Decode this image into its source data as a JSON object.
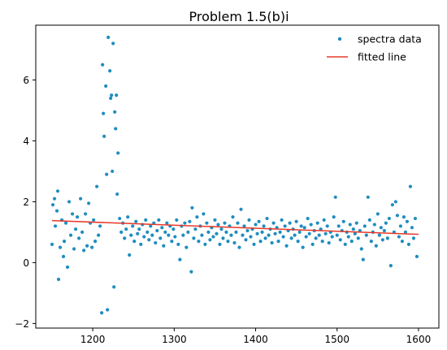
{
  "chart_data": {
    "type": "scatter",
    "title": "Problem 1.5(b)i",
    "xlabel": "",
    "ylabel": "",
    "xlim": [
      1130,
      1625
    ],
    "ylim": [
      -2.15,
      7.8
    ],
    "x_ticks": [
      1200,
      1300,
      1400,
      1500,
      1600
    ],
    "y_ticks": [
      -2,
      0,
      2,
      4,
      6
    ],
    "grid": false,
    "legend_position": "top-right",
    "colors": {
      "scatter": "#1f8dbf",
      "line": "#e8392a"
    },
    "series": [
      {
        "name": "spectra data",
        "kind": "scatter",
        "points": [
          [
            1150,
            0.6
          ],
          [
            1151,
            1.9
          ],
          [
            1153,
            2.1
          ],
          [
            1154,
            1.2
          ],
          [
            1156,
            1.7
          ],
          [
            1157,
            2.35
          ],
          [
            1158,
            -0.55
          ],
          [
            1160,
            0.5
          ],
          [
            1162,
            1.4
          ],
          [
            1164,
            0.2
          ],
          [
            1165,
            0.7
          ],
          [
            1167,
            1.3
          ],
          [
            1169,
            -0.15
          ],
          [
            1171,
            2.0
          ],
          [
            1173,
            0.9
          ],
          [
            1175,
            1.6
          ],
          [
            1177,
            0.45
          ],
          [
            1179,
            1.1
          ],
          [
            1181,
            1.5
          ],
          [
            1183,
            0.8
          ],
          [
            1185,
            2.1
          ],
          [
            1187,
            1.0
          ],
          [
            1189,
            0.4
          ],
          [
            1191,
            1.6
          ],
          [
            1193,
            0.55
          ],
          [
            1195,
            1.95
          ],
          [
            1197,
            1.3
          ],
          [
            1199,
            0.5
          ],
          [
            1201,
            1.4
          ],
          [
            1203,
            0.7
          ],
          [
            1205,
            2.5
          ],
          [
            1207,
            0.9
          ],
          [
            1209,
            1.2
          ],
          [
            1211,
            -1.65
          ],
          [
            1212,
            6.5
          ],
          [
            1213,
            4.9
          ],
          [
            1214,
            4.15
          ],
          [
            1216,
            5.8
          ],
          [
            1217,
            2.9
          ],
          [
            1218,
            -1.55
          ],
          [
            1219,
            7.4
          ],
          [
            1221,
            6.3
          ],
          [
            1222,
            5.4
          ],
          [
            1223,
            5.5
          ],
          [
            1224,
            3.0
          ],
          [
            1225,
            7.2
          ],
          [
            1226,
            -0.8
          ],
          [
            1227,
            4.95
          ],
          [
            1228,
            4.4
          ],
          [
            1229,
            5.5
          ],
          [
            1230,
            2.25
          ],
          [
            1231,
            3.6
          ],
          [
            1233,
            1.45
          ],
          [
            1235,
            1.0
          ],
          [
            1237,
            1.3
          ],
          [
            1239,
            0.8
          ],
          [
            1241,
            1.1
          ],
          [
            1243,
            1.5
          ],
          [
            1245,
            0.25
          ],
          [
            1247,
            0.9
          ],
          [
            1249,
            1.2
          ],
          [
            1251,
            0.7
          ],
          [
            1253,
            1.35
          ],
          [
            1255,
            0.95
          ],
          [
            1257,
            1.1
          ],
          [
            1259,
            0.6
          ],
          [
            1261,
            1.25
          ],
          [
            1263,
            0.85
          ],
          [
            1265,
            1.4
          ],
          [
            1267,
            1.0
          ],
          [
            1269,
            0.75
          ],
          [
            1271,
            1.2
          ],
          [
            1273,
            0.9
          ],
          [
            1275,
            1.3
          ],
          [
            1277,
            0.65
          ],
          [
            1279,
            1.05
          ],
          [
            1281,
            1.4
          ],
          [
            1283,
            0.8
          ],
          [
            1285,
            1.15
          ],
          [
            1287,
            0.55
          ],
          [
            1289,
            1.0
          ],
          [
            1291,
            1.3
          ],
          [
            1293,
            0.9
          ],
          [
            1295,
            1.2
          ],
          [
            1297,
            0.7
          ],
          [
            1299,
            1.1
          ],
          [
            1301,
            0.85
          ],
          [
            1303,
            1.4
          ],
          [
            1305,
            0.6
          ],
          [
            1307,
            0.1
          ],
          [
            1309,
            1.2
          ],
          [
            1311,
            0.9
          ],
          [
            1313,
            1.3
          ],
          [
            1315,
            0.5
          ],
          [
            1317,
            1.0
          ],
          [
            1319,
            1.35
          ],
          [
            1321,
            -0.3
          ],
          [
            1322,
            1.8
          ],
          [
            1324,
            0.8
          ],
          [
            1326,
            1.1
          ],
          [
            1328,
            1.5
          ],
          [
            1330,
            0.7
          ],
          [
            1332,
            1.2
          ],
          [
            1334,
            0.9
          ],
          [
            1336,
            1.6
          ],
          [
            1338,
            0.6
          ],
          [
            1340,
            1.3
          ],
          [
            1342,
            1.0
          ],
          [
            1344,
            0.75
          ],
          [
            1346,
            1.15
          ],
          [
            1348,
            0.85
          ],
          [
            1350,
            1.4
          ],
          [
            1352,
            0.95
          ],
          [
            1354,
            1.25
          ],
          [
            1356,
            0.6
          ],
          [
            1358,
            1.1
          ],
          [
            1360,
            0.8
          ],
          [
            1362,
            1.3
          ],
          [
            1364,
            1.0
          ],
          [
            1366,
            0.7
          ],
          [
            1368,
            1.2
          ],
          [
            1370,
            0.9
          ],
          [
            1372,
            1.5
          ],
          [
            1374,
            0.65
          ],
          [
            1376,
            1.0
          ],
          [
            1378,
            1.3
          ],
          [
            1380,
            0.5
          ],
          [
            1382,
            1.75
          ],
          [
            1384,
            0.9
          ],
          [
            1386,
            1.2
          ],
          [
            1388,
            0.75
          ],
          [
            1390,
            1.05
          ],
          [
            1392,
            1.4
          ],
          [
            1394,
            0.85
          ],
          [
            1396,
            1.1
          ],
          [
            1398,
            0.6
          ],
          [
            1400,
            1.25
          ],
          [
            1402,
            0.95
          ],
          [
            1404,
            1.35
          ],
          [
            1406,
            0.7
          ],
          [
            1408,
            1.0
          ],
          [
            1410,
            1.2
          ],
          [
            1412,
            0.8
          ],
          [
            1414,
            1.45
          ],
          [
            1416,
            0.9
          ],
          [
            1418,
            1.1
          ],
          [
            1420,
            0.65
          ],
          [
            1422,
            1.3
          ],
          [
            1424,
            0.95
          ],
          [
            1426,
            1.15
          ],
          [
            1428,
            0.7
          ],
          [
            1430,
            1.0
          ],
          [
            1432,
            1.4
          ],
          [
            1434,
            0.85
          ],
          [
            1436,
            1.2
          ],
          [
            1438,
            0.55
          ],
          [
            1440,
            1.05
          ],
          [
            1442,
            1.3
          ],
          [
            1444,
            0.8
          ],
          [
            1446,
            1.1
          ],
          [
            1448,
            0.9
          ],
          [
            1450,
            1.35
          ],
          [
            1452,
            0.7
          ],
          [
            1454,
            1.0
          ],
          [
            1456,
            1.2
          ],
          [
            1458,
            0.5
          ],
          [
            1460,
            1.15
          ],
          [
            1462,
            0.85
          ],
          [
            1464,
            1.45
          ],
          [
            1466,
            0.95
          ],
          [
            1468,
            1.25
          ],
          [
            1470,
            0.6
          ],
          [
            1472,
            1.05
          ],
          [
            1474,
            0.8
          ],
          [
            1476,
            1.3
          ],
          [
            1478,
            0.9
          ],
          [
            1480,
            1.1
          ],
          [
            1482,
            0.7
          ],
          [
            1484,
            1.4
          ],
          [
            1486,
            0.95
          ],
          [
            1488,
            1.2
          ],
          [
            1490,
            0.65
          ],
          [
            1492,
            1.0
          ],
          [
            1494,
            0.85
          ],
          [
            1496,
            1.5
          ],
          [
            1498,
            2.15
          ],
          [
            1500,
            0.9
          ],
          [
            1502,
            1.2
          ],
          [
            1504,
            0.75
          ],
          [
            1506,
            1.05
          ],
          [
            1508,
            1.35
          ],
          [
            1510,
            0.6
          ],
          [
            1512,
            1.0
          ],
          [
            1514,
            0.85
          ],
          [
            1516,
            1.25
          ],
          [
            1518,
            0.7
          ],
          [
            1520,
            1.1
          ],
          [
            1522,
            0.95
          ],
          [
            1524,
            1.3
          ],
          [
            1526,
            0.8
          ],
          [
            1528,
            1.05
          ],
          [
            1530,
            0.45
          ],
          [
            1532,
            0.1
          ],
          [
            1534,
            1.2
          ],
          [
            1536,
            0.9
          ],
          [
            1538,
            2.15
          ],
          [
            1540,
            1.4
          ],
          [
            1542,
            0.7
          ],
          [
            1544,
            1.0
          ],
          [
            1546,
            1.25
          ],
          [
            1548,
            0.55
          ],
          [
            1550,
            1.6
          ],
          [
            1552,
            0.9
          ],
          [
            1554,
            1.15
          ],
          [
            1556,
            0.75
          ],
          [
            1558,
            1.05
          ],
          [
            1560,
            1.3
          ],
          [
            1562,
            0.8
          ],
          [
            1564,
            1.45
          ],
          [
            1566,
            -0.1
          ],
          [
            1568,
            1.9
          ],
          [
            1570,
            1.0
          ],
          [
            1572,
            2.0
          ],
          [
            1574,
            1.55
          ],
          [
            1576,
            0.85
          ],
          [
            1578,
            1.2
          ],
          [
            1580,
            0.7
          ],
          [
            1582,
            1.5
          ],
          [
            1584,
            1.0
          ],
          [
            1586,
            1.35
          ],
          [
            1588,
            0.6
          ],
          [
            1590,
            2.5
          ],
          [
            1592,
            1.15
          ],
          [
            1594,
            0.8
          ],
          [
            1596,
            1.45
          ],
          [
            1598,
            0.2
          ]
        ]
      },
      {
        "name": "fitted line",
        "kind": "line",
        "points": [
          [
            1150,
            1.38
          ],
          [
            1600,
            0.93
          ]
        ]
      }
    ]
  }
}
